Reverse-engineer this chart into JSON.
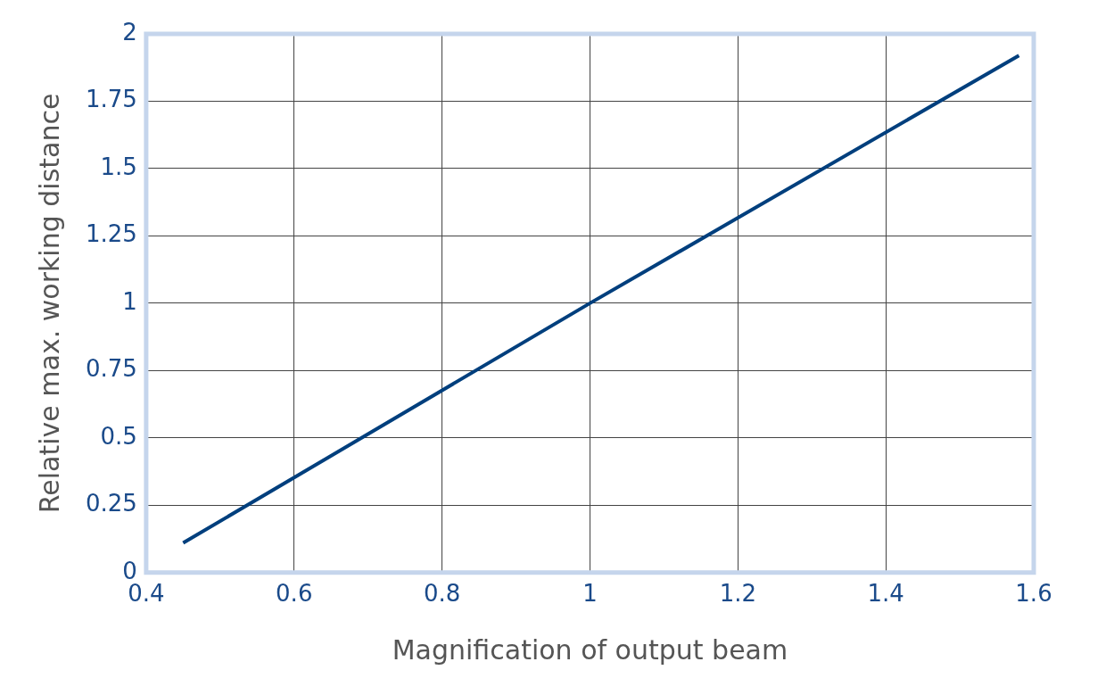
{
  "chart_data": {
    "type": "line",
    "xlabel": "Magnification of output beam",
    "ylabel": "Relative max. working distance",
    "x": [
      0.45,
      1,
      1.58
    ],
    "series": [
      {
        "color": "#003f7d",
        "values": [
          0.11,
          1,
          1.92
        ]
      }
    ],
    "xlim": [
      0.4,
      1.6
    ],
    "xticks": [
      0.4,
      0.6,
      0.8,
      1,
      1.2,
      1.4,
      1.6
    ],
    "ylim": [
      0,
      2
    ],
    "yticks": [
      0,
      0.25,
      0.5,
      0.75,
      1,
      1.25,
      1.5,
      1.75,
      2
    ],
    "grid": true,
    "legend": false,
    "marker": "none",
    "line_style": "solid"
  }
}
